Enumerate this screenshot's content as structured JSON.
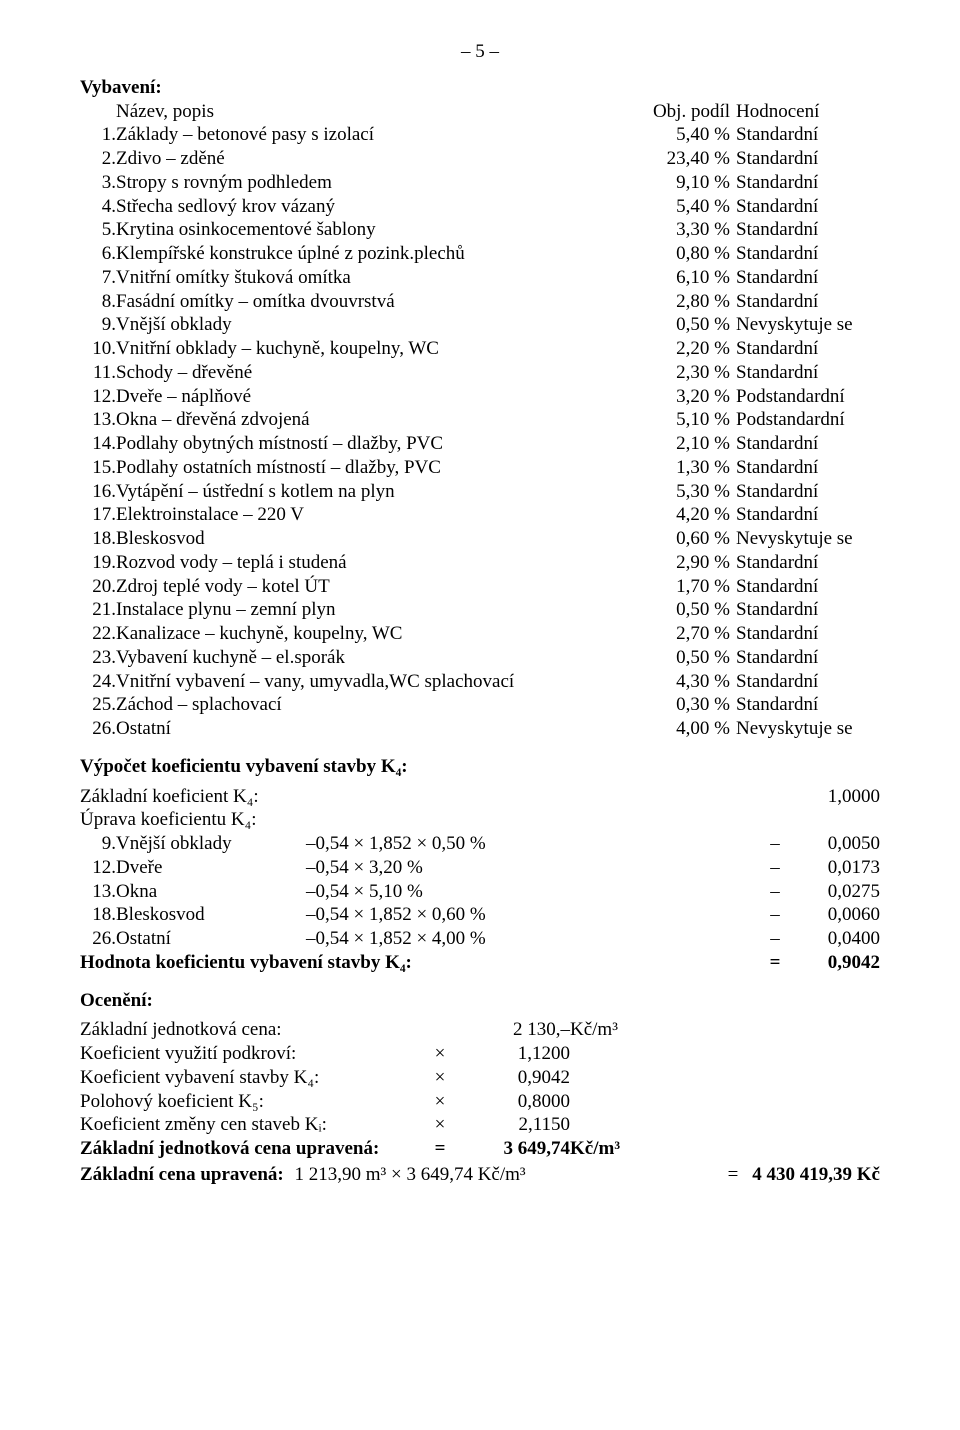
{
  "page_number": "– 5 –",
  "header": {
    "title": "Vybavení:",
    "name_popis": "Název, popis",
    "obj_podil": "Obj. podíl",
    "hodnoceni": "Hodnocení"
  },
  "items": [
    {
      "n": "1.",
      "name": "Základy – betonové pasy s izolací",
      "pct": "5,40 %",
      "eval": "Standardní"
    },
    {
      "n": "2.",
      "name": "Zdivo – zděné",
      "pct": "23,40 %",
      "eval": "Standardní"
    },
    {
      "n": "3.",
      "name": "Stropy s rovným podhledem",
      "pct": "9,10 %",
      "eval": "Standardní"
    },
    {
      "n": "4.",
      "name": "Střecha sedlový krov vázaný",
      "pct": "5,40 %",
      "eval": "Standardní"
    },
    {
      "n": "5.",
      "name": "Krytina osinkocementové šablony",
      "pct": "3,30 %",
      "eval": "Standardní"
    },
    {
      "n": "6.",
      "name": "Klempířské konstrukce úplné z pozink.plechů",
      "pct": "0,80 %",
      "eval": "Standardní"
    },
    {
      "n": "7.",
      "name": "Vnitřní omítky štuková omítka",
      "pct": "6,10 %",
      "eval": "Standardní"
    },
    {
      "n": "8.",
      "name": "Fasádní omítky – omítka dvouvrstvá",
      "pct": "2,80 %",
      "eval": "Standardní"
    },
    {
      "n": "9.",
      "name": "Vnější obklady",
      "pct": "0,50 %",
      "eval": "Nevyskytuje se"
    },
    {
      "n": "10.",
      "name": "Vnitřní obklady – kuchyně, koupelny, WC",
      "pct": "2,20 %",
      "eval": "Standardní"
    },
    {
      "n": "11.",
      "name": "Schody – dřevěné",
      "pct": "2,30 %",
      "eval": "Standardní"
    },
    {
      "n": "12.",
      "name": "Dveře – náplňové",
      "pct": "3,20 %",
      "eval": "Podstandardní"
    },
    {
      "n": "13.",
      "name": "Okna – dřevěná zdvojená",
      "pct": "5,10 %",
      "eval": "Podstandardní"
    },
    {
      "n": "14.",
      "name": "Podlahy obytných místností – dlažby, PVC",
      "pct": "2,10 %",
      "eval": "Standardní"
    },
    {
      "n": "15.",
      "name": "Podlahy ostatních místností – dlažby, PVC",
      "pct": "1,30 %",
      "eval": "Standardní"
    },
    {
      "n": "16.",
      "name": "Vytápění – ústřední s kotlem na plyn",
      "pct": "5,30 %",
      "eval": "Standardní"
    },
    {
      "n": "17.",
      "name": "Elektroinstalace – 220 V",
      "pct": "4,20 %",
      "eval": "Standardní"
    },
    {
      "n": "18.",
      "name": "Bleskosvod",
      "pct": "0,60 %",
      "eval": "Nevyskytuje se"
    },
    {
      "n": "19.",
      "name": "Rozvod vody – teplá i studená",
      "pct": "2,90 %",
      "eval": "Standardní"
    },
    {
      "n": "20.",
      "name": "Zdroj teplé vody – kotel ÚT",
      "pct": "1,70 %",
      "eval": "Standardní"
    },
    {
      "n": "21.",
      "name": "Instalace plynu – zemní plyn",
      "pct": "0,50 %",
      "eval": "Standardní"
    },
    {
      "n": "22.",
      "name": "Kanalizace – kuchyně, koupelny, WC",
      "pct": "2,70 %",
      "eval": "Standardní"
    },
    {
      "n": "23.",
      "name": "Vybavení kuchyně – el.sporák",
      "pct": "0,50 %",
      "eval": "Standardní"
    },
    {
      "n": "24.",
      "name": "Vnitřní vybavení – vany, umyvadla,WC splachovací",
      "pct": "4,30 %",
      "eval": "Standardní"
    },
    {
      "n": "25.",
      "name": "Záchod – splachovací",
      "pct": "0,30 %",
      "eval": "Standardní"
    },
    {
      "n": "26.",
      "name": "Ostatní",
      "pct": "4,00 %",
      "eval": "Nevyskytuje se"
    }
  ],
  "k4_section": {
    "title": "Výpočet koeficientu vybavení stavby K₄:",
    "basic_label": "Základní koeficient K₄:",
    "basic_value": "1,0000",
    "adjust_label": "Úprava koeficientu K₄:",
    "rows": [
      {
        "n": "9.",
        "name": "Vnější obklady",
        "expr": "–0,54 × 1,852 × 0,50 %",
        "eq": "–",
        "val": "0,0050"
      },
      {
        "n": "12.",
        "name": "Dveře",
        "expr": "–0,54 × 3,20 %",
        "eq": "–",
        "val": "0,0173"
      },
      {
        "n": "13.",
        "name": "Okna",
        "expr": "–0,54 × 5,10 %",
        "eq": "–",
        "val": "0,0275"
      },
      {
        "n": "18.",
        "name": "Bleskosvod",
        "expr": "–0,54 × 1,852 × 0,60 %",
        "eq": "–",
        "val": "0,0060"
      },
      {
        "n": "26.",
        "name": "Ostatní",
        "expr": "–0,54 × 1,852 × 4,00 %",
        "eq": "–",
        "val": "0,0400"
      }
    ],
    "result_label": "Hodnota koeficientu vybavení stavby K₄:",
    "result_eq": "=",
    "result_value": "0,9042"
  },
  "ocen_section": {
    "title": "Ocenění:",
    "rows": [
      {
        "label": "Základní jednotková cena:",
        "op": "",
        "val": "2 130,–",
        "unit": "Kč/m³",
        "bold": false
      },
      {
        "label": "Koeficient využití podkroví:",
        "op": "×",
        "val": "1,1200",
        "unit": "",
        "bold": false
      },
      {
        "label": "Koeficient vybavení stavby K₄:",
        "op": "×",
        "val": "0,9042",
        "unit": "",
        "bold": false
      },
      {
        "label": "Polohový koeficient K₅:",
        "op": "×",
        "val": "0,8000",
        "unit": "",
        "bold": false
      },
      {
        "label": "Koeficient změny cen staveb Kᵢ:",
        "op": "×",
        "val": "2,1150",
        "unit": "",
        "bold": false
      },
      {
        "label": "Základní jednotková cena upravená:",
        "op": "=",
        "val": "3 649,74",
        "unit": "Kč/m³",
        "bold": true
      }
    ],
    "final_label": "Základní cena upravená:",
    "final_expr": "1 213,90 m³ × 3 649,74 Kč/m³",
    "final_eq": "=",
    "final_value": "4 430 419,39 Kč"
  },
  "colors": {
    "text": "#000000",
    "background": "#ffffff"
  },
  "typography": {
    "base_font_size_pt": 14,
    "font_family": "Times New Roman"
  }
}
